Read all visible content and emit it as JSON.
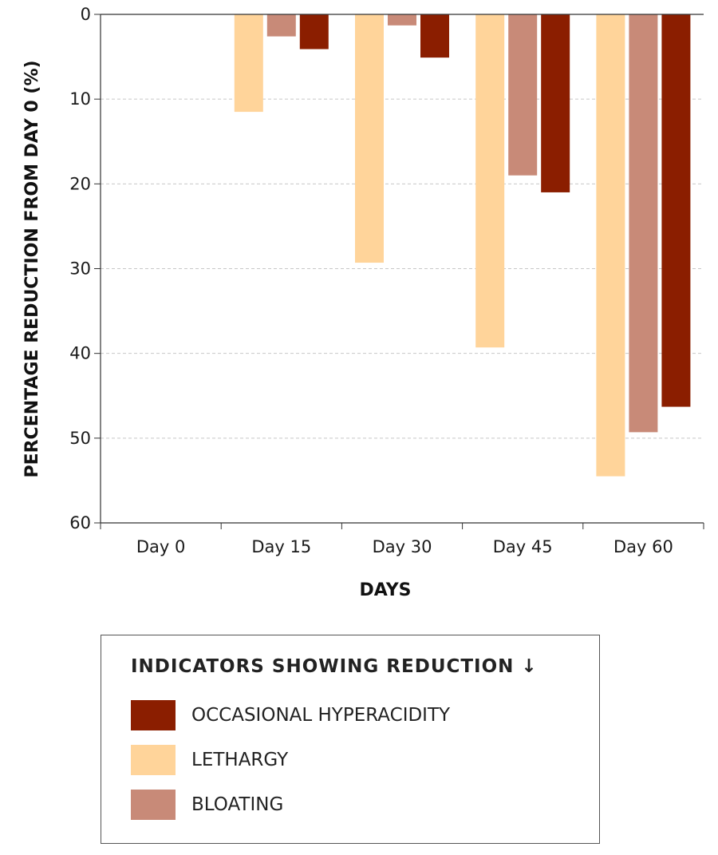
{
  "chart_data": {
    "type": "bar",
    "ylabel": "PERCENTAGE REDUCTION  FROM DAY 0 (%)",
    "xlabel": "DAYS",
    "categories": [
      "Day 0",
      "Day 15",
      "Day 30",
      "Day 45",
      "Day 60"
    ],
    "ylim": [
      0,
      60
    ],
    "y_inverted": true,
    "yticks": [
      "0",
      "10",
      "20",
      "30",
      "40",
      "50",
      "60"
    ],
    "grid": "horizontal-dashed",
    "legend_title": "INDICATORS SHOWING REDUCTION ↓",
    "legend_placement": "bottom",
    "series": [
      {
        "name": "LETHARGY",
        "color": "#FFD49A",
        "values": [
          0,
          11.5,
          29.3,
          39.3,
          54.5
        ]
      },
      {
        "name": "BLOATING",
        "color": "#C88A78",
        "values": [
          0,
          2.6,
          1.3,
          19.0,
          49.3
        ]
      },
      {
        "name": "OCCASIONAL HYPERACIDITY",
        "color": "#8B1E00",
        "values": [
          0,
          4.1,
          5.1,
          21.0,
          46.3
        ]
      }
    ],
    "legend_order": [
      2,
      0,
      1
    ]
  }
}
